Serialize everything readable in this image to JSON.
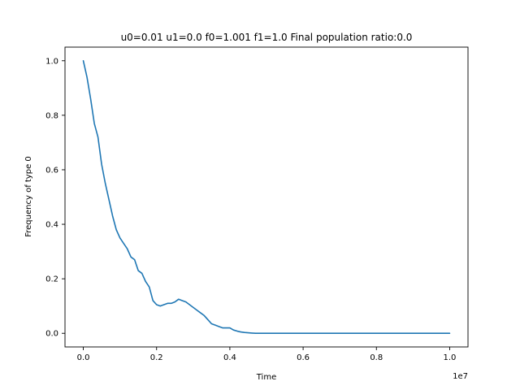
{
  "chart_data": {
    "type": "line",
    "title": "u0=0.01 u1=0.0 f0=1.001 f1=1.0 Final population ratio:0.0",
    "xlabel": "Time",
    "ylabel": "Frequency of type 0",
    "x_offset_text": "1e7",
    "xlim": [
      -0.05,
      1.05
    ],
    "ylim": [
      -0.05,
      1.05
    ],
    "x_ticks": [
      0.0,
      0.2,
      0.4,
      0.6,
      0.8,
      1.0
    ],
    "x_tick_labels": [
      "0.0",
      "0.2",
      "0.4",
      "0.6",
      "0.8",
      "1.0"
    ],
    "y_ticks": [
      0.0,
      0.2,
      0.4,
      0.6,
      0.8,
      1.0
    ],
    "y_tick_labels": [
      "0.0",
      "0.2",
      "0.4",
      "0.6",
      "0.8",
      "1.0"
    ],
    "grid": false,
    "legend": "none",
    "series_color": "#1f77b4",
    "series": [
      {
        "x": [
          0.0,
          0.01,
          0.02,
          0.03,
          0.04,
          0.05,
          0.06,
          0.07,
          0.08,
          0.09,
          0.1,
          0.11,
          0.12,
          0.13,
          0.14,
          0.15,
          0.16,
          0.17,
          0.18,
          0.19,
          0.2,
          0.21,
          0.22,
          0.23,
          0.24,
          0.25,
          0.26,
          0.27,
          0.28,
          0.29,
          0.3,
          0.31,
          0.32,
          0.33,
          0.34,
          0.35,
          0.36,
          0.37,
          0.38,
          0.39,
          0.4,
          0.41,
          0.42,
          0.43,
          0.44,
          0.45,
          0.46,
          0.47,
          0.48,
          0.49,
          0.5,
          0.6,
          0.7,
          0.8,
          0.9,
          1.0
        ],
        "y": [
          1.0,
          0.94,
          0.86,
          0.77,
          0.72,
          0.62,
          0.55,
          0.49,
          0.43,
          0.38,
          0.35,
          0.33,
          0.31,
          0.28,
          0.27,
          0.23,
          0.22,
          0.19,
          0.17,
          0.12,
          0.105,
          0.1,
          0.105,
          0.11,
          0.11,
          0.115,
          0.125,
          0.12,
          0.115,
          0.105,
          0.095,
          0.085,
          0.075,
          0.065,
          0.05,
          0.035,
          0.03,
          0.025,
          0.02,
          0.02,
          0.02,
          0.012,
          0.008,
          0.005,
          0.003,
          0.002,
          0.001,
          0.0,
          0.0,
          0.0,
          0.0,
          0.0,
          0.0,
          0.0,
          0.0,
          0.0
        ]
      }
    ]
  }
}
